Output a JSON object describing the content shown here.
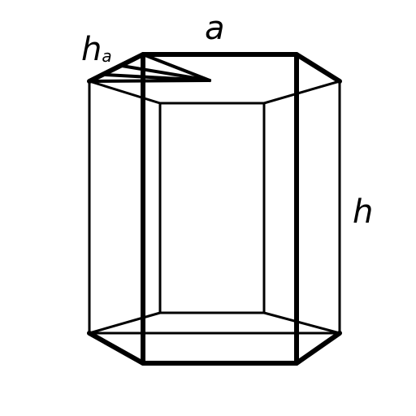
{
  "labels": {
    "side_length": "a",
    "apothem_main": "h",
    "apothem_subscript": "a",
    "height": "h"
  },
  "colors": {
    "stroke": "#000000",
    "background": "#ffffff"
  }
}
